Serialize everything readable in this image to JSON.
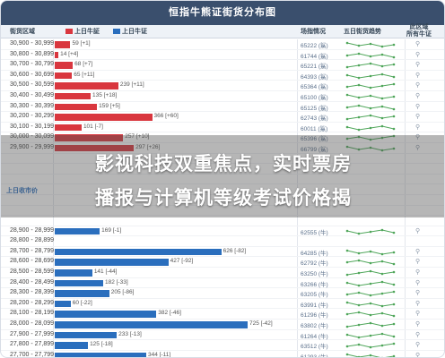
{
  "title": "恒指牛熊证街货分布图",
  "header": {
    "col_range": "街货区域",
    "col_bull": "上日牛証",
    "col_bear": "上日牛证",
    "col_price": "场指情况",
    "col_trend": "五日街货趋势",
    "col_detail_1": "此区域",
    "col_detail_2": "所有牛证",
    "bull_color": "#d9363e",
    "bear_color": "#2a6ebd"
  },
  "rows": [
    {
      "range": "30,900 - 30,999",
      "value": "59 [+1]",
      "amount": 59,
      "type": "red",
      "price": "65222 (鯊)"
    },
    {
      "range": "30,800 - 30,899",
      "value": "14 [+4]",
      "amount": 14,
      "type": "red",
      "price": "61744 (鯊)"
    },
    {
      "range": "30,700 - 30,799",
      "value": "68 [+7]",
      "amount": 68,
      "type": "red",
      "price": "65221 (鯊)"
    },
    {
      "range": "30,600 - 30,699",
      "value": "65 [+11]",
      "amount": 65,
      "type": "red",
      "price": "64393 (鯊)"
    },
    {
      "range": "30,500 - 30,599",
      "value": "239 [+11]",
      "amount": 239,
      "type": "red",
      "price": "65364 (鯊)"
    },
    {
      "range": "30,400 - 30,499",
      "value": "135 [+18]",
      "amount": 135,
      "type": "red",
      "price": "65100 (鯊)"
    },
    {
      "range": "30,300 - 30,399",
      "value": "159 [+5]",
      "amount": 159,
      "type": "red",
      "price": "65125 (鯊)"
    },
    {
      "range": "30,200 - 30,299",
      "value": "366 [+60]",
      "amount": 366,
      "type": "red",
      "price": "62743 (鯊)"
    },
    {
      "range": "30,100 - 30,199",
      "value": "101 [-7]",
      "amount": 101,
      "type": "red",
      "price": "60011 (鯊)"
    },
    {
      "range": "30,000 - 30,099",
      "value": "257 [+10]",
      "amount": 257,
      "type": "red",
      "price": "65396 (鯊)"
    },
    {
      "range": "29,900 - 29,999",
      "value": "297 [+26]",
      "amount": 297,
      "type": "red",
      "price": "66799 (鯊)"
    },
    {
      "range": "",
      "value": "",
      "amount": 0,
      "type": "none",
      "price": ""
    },
    {
      "range": "",
      "value": "",
      "amount": 0,
      "type": "none",
      "price": ""
    },
    {
      "range": "",
      "value": "",
      "amount": 0,
      "type": "none",
      "price": ""
    },
    {
      "range": "",
      "value": "",
      "amount": 0,
      "type": "none",
      "price": ""
    },
    {
      "range": "",
      "value": "",
      "amount": 0,
      "type": "none",
      "price": ""
    },
    {
      "range": "",
      "value": "",
      "amount": 0,
      "type": "none",
      "price": ""
    },
    {
      "range": "",
      "value": "",
      "amount": 0,
      "type": "none",
      "price": ""
    },
    {
      "range": "28,900 - 28,999",
      "value": "169 [-1]",
      "amount": 169,
      "type": "blue",
      "price": "62555 (牛)"
    },
    {
      "range": "28,800 - 28,899",
      "value": "",
      "amount": 0,
      "type": "none",
      "price": ""
    },
    {
      "range": "28,700 - 28,799",
      "value": "626 [-82]",
      "amount": 626,
      "type": "blue",
      "price": "64285 (牛)"
    },
    {
      "range": "28,600 - 28,699",
      "value": "427 [-92]",
      "amount": 427,
      "type": "blue",
      "price": "62792 (牛)"
    },
    {
      "range": "28,500 - 28,599",
      "value": "141 [-44]",
      "amount": 141,
      "type": "blue",
      "price": "63250 (牛)"
    },
    {
      "range": "28,400 - 28,499",
      "value": "182 [-33]",
      "amount": 182,
      "type": "blue",
      "price": "63266 (牛)"
    },
    {
      "range": "28,300 - 28,399",
      "value": "205 [-86]",
      "amount": 205,
      "type": "blue",
      "price": "63205 (牛)"
    },
    {
      "range": "28,200 - 28,299",
      "value": "60 [-22]",
      "amount": 60,
      "type": "blue",
      "price": "63991 (牛)"
    },
    {
      "range": "28,100 - 28,199",
      "value": "382 [-46]",
      "amount": 382,
      "type": "blue",
      "price": "61296 (牛)"
    },
    {
      "range": "28,000 - 28,099",
      "value": "725 [-42]",
      "amount": 725,
      "type": "blue",
      "price": "63802 (牛)"
    },
    {
      "range": "27,900 - 27,999",
      "value": "233 [-13]",
      "amount": 233,
      "type": "blue",
      "price": "61264 (牛)"
    },
    {
      "range": "27,800 - 27,899",
      "value": "125 [-18]",
      "amount": 125,
      "type": "blue",
      "price": "63512 (牛)"
    },
    {
      "range": "27,700 - 27,799",
      "value": "344 [-11]",
      "amount": 344,
      "type": "blue",
      "price": "61293 (牛)"
    },
    {
      "range": "27,600 - 27,699",
      "value": "",
      "amount": 0,
      "type": "none",
      "price": ""
    }
  ],
  "side_label": "上日收市价",
  "overlay": {
    "line1": "影视科技双重焦点，实时票房",
    "line2": "播报与计算机等级考试价格揭"
  }
}
